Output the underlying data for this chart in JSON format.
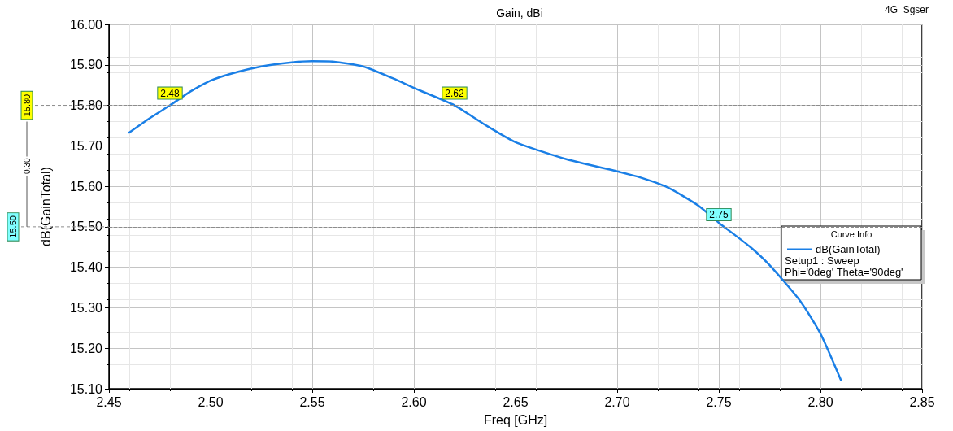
{
  "chart_data": {
    "type": "line",
    "title": "Gain, dBi",
    "xlabel": "Freq [GHz]",
    "ylabel": "dB(GainTotal)",
    "legend_title": "Curve Info",
    "x": [
      2.46,
      2.47,
      2.48,
      2.49,
      2.5,
      2.51,
      2.525,
      2.54,
      2.55,
      2.56,
      2.575,
      2.59,
      2.6,
      2.62,
      2.635,
      2.65,
      2.675,
      2.7,
      2.71,
      2.725,
      2.74,
      2.75,
      2.765,
      2.775,
      2.79,
      2.8,
      2.81
    ],
    "series": [
      {
        "name": "dB(GainTotal)",
        "color": "#1a7fe6",
        "values": [
          15.733,
          15.768,
          15.8,
          15.834,
          15.861,
          15.878,
          15.896,
          15.906,
          15.909,
          15.908,
          15.896,
          15.866,
          15.843,
          15.8,
          15.752,
          15.709,
          15.667,
          15.637,
          15.624,
          15.597,
          15.552,
          15.51,
          15.452,
          15.405,
          15.317,
          15.236,
          15.122
        ]
      }
    ],
    "xlim": [
      2.45,
      2.85
    ],
    "xticks": [
      2.45,
      {
        "value": 2.5,
        "label": "2.50"
      },
      2.55,
      {
        "value": 2.6,
        "label": "2.60"
      },
      2.65,
      {
        "value": 2.7,
        "label": "2.70"
      },
      2.75,
      {
        "value": 2.8,
        "label": "2.80"
      },
      2.85
    ],
    "ylim": [
      15.1,
      16.0
    ],
    "yticks": [
      {
        "value": 15.1,
        "label": "15.10"
      },
      {
        "value": 15.2,
        "label": "15.20"
      },
      {
        "value": 15.3,
        "label": "15.30"
      },
      {
        "value": 15.4,
        "label": "15.40"
      },
      {
        "value": 15.5,
        "label": "15.50"
      },
      {
        "value": 15.6,
        "label": "15.60"
      },
      {
        "value": 15.7,
        "label": "15.70"
      },
      {
        "value": 15.8,
        "label": "15.80"
      },
      {
        "value": 15.9,
        "label": "15.90"
      },
      {
        "value": 16.0,
        "label": "16.00"
      }
    ],
    "ref_lines": [
      {
        "axis": "y",
        "value": 15.8,
        "label": "15.80",
        "color": "#8c8c8c",
        "line_style": "dashed"
      },
      {
        "axis": "y",
        "value": 15.5,
        "label": "15.50",
        "color": "#8c8c8c",
        "line_style": "dashed"
      }
    ],
    "annotations": [
      "4G_Sgser",
      "Setup1 : Sweep",
      "Phi='0deg' Theta='90deg'",
      "0.30",
      {
        "text": "2.48",
        "x": 2.48,
        "y": 15.8
      },
      {
        "text": "2.62",
        "x": 2.62,
        "y": 15.8
      },
      {
        "text": "2.75",
        "x": 2.75,
        "y": 15.5
      }
    ],
    "grid": true,
    "legend": "right",
    "marker": "none",
    "line_style": "solid"
  }
}
